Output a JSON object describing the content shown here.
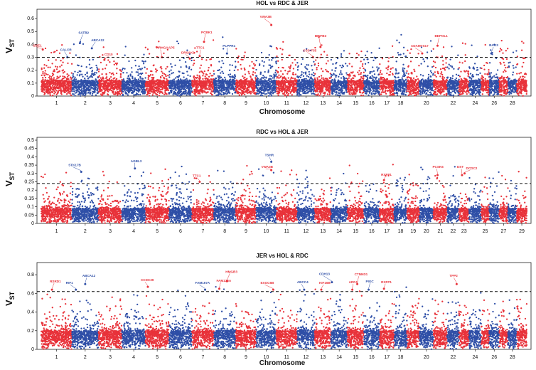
{
  "colors": {
    "red": "#e8323a",
    "blue": "#2f4fa7",
    "axis": "#222222",
    "threshold": "#111111"
  },
  "ylabel_main": "V",
  "ylabel_sub": "ST",
  "chart_data": [
    {
      "type": "scatter",
      "title": "HOL vs RDC & JER",
      "xlabel": "Chromosome",
      "ylim": [
        0,
        0.65
      ],
      "yticks": [
        0.0,
        0.1,
        0.2,
        0.3,
        0.4,
        0.5,
        0.6
      ],
      "xtick_labels": [
        "1",
        "2",
        "3",
        "4",
        "5",
        "6",
        "7",
        "8",
        "9",
        "10",
        "11",
        "12",
        "13",
        "14",
        "15",
        "16",
        "17",
        "18",
        "20",
        "22",
        "24",
        "26",
        "28"
      ],
      "xtick_chroms": [
        1,
        2,
        3,
        4,
        5,
        6,
        7,
        8,
        9,
        10,
        11,
        12,
        13,
        14,
        15,
        16,
        17,
        18,
        20,
        22,
        24,
        26,
        28
      ],
      "threshold": 0.3,
      "base": 0.12,
      "spread": 0.36,
      "genes": [
        {
          "name": "GBE1",
          "chrom": 1,
          "pos": 0.05,
          "value": 0.36,
          "color": "red",
          "dx": -14,
          "dy": -4
        },
        {
          "name": "CALCR",
          "chrom": 1,
          "pos": 0.85,
          "value": 0.3,
          "color": "blue",
          "dx": -10,
          "dy": -9
        },
        {
          "name": "SATB2",
          "chrom": 2,
          "pos": 0.3,
          "value": 0.41,
          "color": "blue",
          "dx": -2,
          "dy": -13
        },
        {
          "name": "ABCA12",
          "chrom": 2,
          "pos": 0.75,
          "value": 0.37,
          "color": "blue",
          "dx": -1,
          "dy": -10
        },
        {
          "name": "CD10",
          "chrom": 3,
          "pos": 0.25,
          "value": 0.28,
          "color": "red",
          "dx": 0,
          "dy": -6
        },
        {
          "name": "ARHGAAP5",
          "chrom": 5,
          "pos": 0.7,
          "value": 0.3,
          "color": "red",
          "dx": -8,
          "dy": -12
        },
        {
          "name": "DRSAK1",
          "chrom": 6,
          "pos": 0.9,
          "value": 0.29,
          "color": "red",
          "dx": -12,
          "dy": -7
        },
        {
          "name": "TTC1",
          "chrom": 7,
          "pos": 0.35,
          "value": 0.31,
          "color": "red",
          "dx": -5,
          "dy": -10
        },
        {
          "name": "PCBK1",
          "chrom": 7,
          "pos": 0.55,
          "value": 0.42,
          "color": "red",
          "dx": -4,
          "dy": -12
        },
        {
          "name": "PLPPR1",
          "chrom": 8,
          "pos": 0.6,
          "value": 0.33,
          "color": "blue",
          "dx": -6,
          "dy": -9
        },
        {
          "name": "VWA3B",
          "chrom": 10,
          "pos": 0.75,
          "value": 0.55,
          "color": "red",
          "dx": -16,
          "dy": -10
        },
        {
          "name": "CSS-F55",
          "chrom": 12,
          "pos": 0.9,
          "value": 0.3,
          "color": "red",
          "dx": -14,
          "dy": -8
        },
        {
          "name": "BPIFB3",
          "chrom": 13,
          "pos": 0.35,
          "value": 0.38,
          "color": "red",
          "dx": -8,
          "dy": -14
        },
        {
          "name": "ADAMTS17",
          "chrom": 20,
          "pos": 0.2,
          "value": 0.33,
          "color": "red",
          "dx": -16,
          "dy": -9
        },
        {
          "name": "BEPOL1",
          "chrom": 21,
          "pos": 0.3,
          "value": 0.39,
          "color": "red",
          "dx": -4,
          "dy": -12
        },
        {
          "name": "BAG3",
          "chrom": 26,
          "pos": 0.2,
          "value": 0.33,
          "color": "blue",
          "dx": -3,
          "dy": -10
        }
      ]
    },
    {
      "type": "scatter",
      "title": "RDC vs HOL & JER",
      "xlabel": "",
      "ylim": [
        0,
        0.5
      ],
      "yticks": [
        0.0,
        0.05,
        0.1,
        0.15,
        0.2,
        0.25,
        0.3,
        0.35,
        0.4,
        0.45,
        0.5
      ],
      "xtick_labels": [
        "1",
        "2",
        "3",
        "4",
        "5",
        "6",
        "7",
        "8",
        "9",
        "10",
        "11",
        "12",
        "13",
        "14",
        "15",
        "16",
        "17",
        "18",
        "19",
        "20",
        "21",
        "22",
        "23",
        "25",
        "27",
        "29"
      ],
      "xtick_chroms": [
        1,
        2,
        3,
        4,
        5,
        6,
        7,
        8,
        9,
        10,
        11,
        12,
        13,
        14,
        15,
        16,
        17,
        18,
        19,
        20,
        21,
        22,
        23,
        25,
        27,
        29
      ],
      "threshold": 0.24,
      "base": 0.09,
      "spread": 0.28,
      "genes": [
        {
          "name": "STK17B",
          "chrom": 2,
          "pos": 0.35,
          "value": 0.31,
          "color": "blue",
          "dx": -18,
          "dy": -8
        },
        {
          "name": "AGBL3",
          "chrom": 4,
          "pos": 0.55,
          "value": 0.33,
          "color": "blue",
          "dx": -6,
          "dy": -9
        },
        {
          "name": "TTC1",
          "chrom": 7,
          "pos": 0.35,
          "value": 0.25,
          "color": "red",
          "dx": -10,
          "dy": -7
        },
        {
          "name": "TSHR",
          "chrom": 10,
          "pos": 0.75,
          "value": 0.37,
          "color": "blue",
          "dx": -9,
          "dy": -8
        },
        {
          "name": "VWA3B",
          "chrom": 10,
          "pos": 0.75,
          "value": 0.32,
          "color": "red",
          "dx": -14,
          "dy": -3
        },
        {
          "name": "RXFP1",
          "chrom": 17,
          "pos": 0.3,
          "value": 0.26,
          "color": "red",
          "dx": -4,
          "dy": -6
        },
        {
          "name": "PCSK6",
          "chrom": 21,
          "pos": 0.3,
          "value": 0.29,
          "color": "red",
          "dx": -7,
          "dy": -10
        },
        {
          "name": "DST",
          "chrom": 23,
          "pos": 0.3,
          "value": 0.29,
          "color": "red",
          "dx": -7,
          "dy": -10
        },
        {
          "name": "DCDC2",
          "chrom": 23,
          "pos": 0.55,
          "value": 0.3,
          "color": "red",
          "dx": 2,
          "dy": -6
        }
      ]
    },
    {
      "type": "scatter",
      "title": "JER vs HOL & RDC",
      "xlabel": "Chromosome",
      "ylim": [
        0,
        0.9
      ],
      "yticks": [
        0.0,
        0.2,
        0.4,
        0.6,
        0.8
      ],
      "xtick_labels": [
        "1",
        "2",
        "3",
        "4",
        "5",
        "6",
        "7",
        "8",
        "9",
        "10",
        "11",
        "12",
        "13",
        "14",
        "15",
        "16",
        "17",
        "18",
        "20",
        "22",
        "24",
        "26",
        "28"
      ],
      "xtick_chroms": [
        1,
        2,
        3,
        4,
        5,
        6,
        7,
        8,
        9,
        10,
        11,
        12,
        13,
        14,
        15,
        16,
        17,
        18,
        20,
        22,
        24,
        26,
        28
      ],
      "threshold": 0.62,
      "base": 0.2,
      "spread": 0.48,
      "genes": [
        {
          "name": "RSRD1",
          "chrom": 1,
          "pos": 0.35,
          "value": 0.64,
          "color": "red",
          "dx": -3,
          "dy": -10
        },
        {
          "name": "RIF1",
          "chrom": 2,
          "pos": 0.15,
          "value": 0.64,
          "color": "blue",
          "dx": -14,
          "dy": -8
        },
        {
          "name": "ABCA12",
          "chrom": 2,
          "pos": 0.5,
          "value": 0.7,
          "color": "blue",
          "dx": -4,
          "dy": -10
        },
        {
          "name": "CCDC39",
          "chrom": 5,
          "pos": 0.1,
          "value": 0.67,
          "color": "red",
          "dx": -10,
          "dy": -8
        },
        {
          "name": "FAM167A",
          "chrom": 7,
          "pos": 0.6,
          "value": 0.64,
          "color": "blue",
          "dx": -14,
          "dy": -8
        },
        {
          "name": "FAM135A",
          "chrom": 8,
          "pos": 0.25,
          "value": 0.65,
          "color": "red",
          "dx": -4,
          "dy": -10
        },
        {
          "name": "HMGB3",
          "chrom": 8,
          "pos": 0.6,
          "value": 0.73,
          "color": "red",
          "dx": -2,
          "dy": -12
        },
        {
          "name": "EXOC6B",
          "chrom": 10,
          "pos": 0.85,
          "value": 0.64,
          "color": "red",
          "dx": -18,
          "dy": -8
        },
        {
          "name": "ABCC4",
          "chrom": 12,
          "pos": 0.4,
          "value": 0.64,
          "color": "blue",
          "dx": -10,
          "dy": -9
        },
        {
          "name": "KIF16B",
          "chrom": 13,
          "pos": 0.4,
          "value": 0.64,
          "color": "red",
          "dx": -3,
          "dy": -8
        },
        {
          "name": "CDH13",
          "chrom": 14,
          "pos": 0.05,
          "value": 0.72,
          "color": "blue",
          "dx": -18,
          "dy": -10
        },
        {
          "name": "ARF4",
          "chrom": 15,
          "pos": 0.3,
          "value": 0.64,
          "color": "red",
          "dx": -5,
          "dy": -9
        },
        {
          "name": "CTNND1",
          "chrom": 15,
          "pos": 0.6,
          "value": 0.7,
          "color": "red",
          "dx": -4,
          "dy": -12
        },
        {
          "name": "PIGC",
          "chrom": 16,
          "pos": 0.3,
          "value": 0.64,
          "color": "blue",
          "dx": -4,
          "dy": -10
        },
        {
          "name": "RXFP1",
          "chrom": 17,
          "pos": 0.3,
          "value": 0.65,
          "color": "red",
          "dx": -4,
          "dy": -8
        },
        {
          "name": "TPP2",
          "chrom": 22,
          "pos": 0.8,
          "value": 0.7,
          "color": "red",
          "dx": -10,
          "dy": -10
        }
      ]
    }
  ]
}
